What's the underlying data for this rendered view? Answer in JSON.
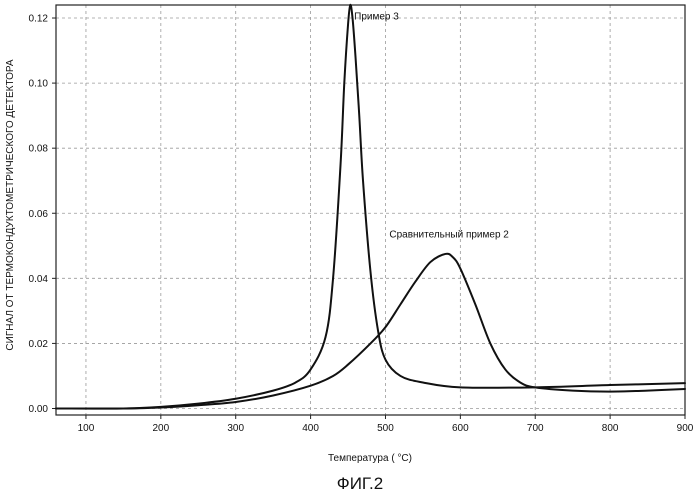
{
  "chart_data": {
    "type": "line",
    "xlabel": "Температура ( °C)",
    "ylabel": "СИГНАЛ ОТ ТЕРМОКОНДУКТОМЕТРИЧЕСКОГО ДЕТЕКТОРА",
    "caption": "ФИГ.2",
    "xlim": [
      60,
      900
    ],
    "ylim": [
      -0.002,
      0.124
    ],
    "x_ticks": [
      100,
      200,
      300,
      400,
      500,
      600,
      700,
      800,
      900
    ],
    "y_ticks": [
      0.0,
      0.02,
      0.04,
      0.06,
      0.08,
      0.1,
      0.12
    ],
    "x_tick_labels": [
      "100",
      "200",
      "300",
      "400",
      "500",
      "600",
      "700",
      "800",
      "900"
    ],
    "y_tick_labels": [
      "0.00",
      "0.02",
      "0.04",
      "0.06",
      "0.08",
      "0.10",
      "0.12"
    ],
    "grid": true,
    "legend": "none",
    "colors": {
      "line": "#111111",
      "grid": "#9a9a9a"
    },
    "series": [
      {
        "name": "Пример 3",
        "x": [
          60,
          150,
          200,
          250,
          300,
          350,
          380,
          400,
          420,
          430,
          440,
          445,
          450,
          453,
          456,
          460,
          465,
          470,
          480,
          490,
          500,
          520,
          550,
          600,
          700,
          800,
          900
        ],
        "y": [
          0.0,
          0.0,
          0.0005,
          0.0015,
          0.003,
          0.0055,
          0.008,
          0.012,
          0.022,
          0.04,
          0.075,
          0.1,
          0.118,
          0.124,
          0.12,
          0.108,
          0.09,
          0.07,
          0.042,
          0.024,
          0.015,
          0.01,
          0.008,
          0.0065,
          0.0065,
          0.0072,
          0.0078
        ]
      },
      {
        "name": "Сравнительный пример 2",
        "x": [
          60,
          150,
          200,
          250,
          300,
          350,
          400,
          430,
          450,
          480,
          500,
          520,
          540,
          560,
          580,
          590,
          600,
          620,
          640,
          660,
          680,
          700,
          750,
          800,
          850,
          900
        ],
        "y": [
          0.0,
          0.0,
          0.0003,
          0.001,
          0.002,
          0.004,
          0.007,
          0.01,
          0.0135,
          0.02,
          0.025,
          0.032,
          0.039,
          0.045,
          0.0475,
          0.0465,
          0.043,
          0.032,
          0.02,
          0.012,
          0.008,
          0.0065,
          0.0055,
          0.0052,
          0.0055,
          0.006
        ]
      }
    ],
    "annotations": [
      {
        "text": "Пример 3",
        "x": 488,
        "y": 0.1195
      },
      {
        "text": "Сравнительный пример 2",
        "x": 585,
        "y": 0.0525
      }
    ]
  }
}
